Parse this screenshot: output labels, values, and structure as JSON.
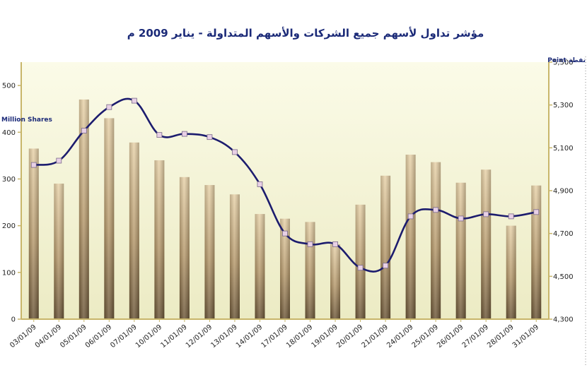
{
  "chart_data": {
    "type": "bar+line",
    "title": "مؤشر تداول لأسهم جميع الشركات والأسهم المتداولة - يناير 2009 م",
    "categories": [
      "03/01/09",
      "04/01/09",
      "05/01/09",
      "06/01/09",
      "07/01/09",
      "10/01/09",
      "11/01/09",
      "12/01/09",
      "13/01/09",
      "14/01/09",
      "17/01/09",
      "18/01/09",
      "19/01/09",
      "20/01/09",
      "21/01/09",
      "24/01/09",
      "25/01/09",
      "26/01/09",
      "27/01/09",
      "28/01/09",
      "31/01/09"
    ],
    "series": [
      {
        "values": [
          365,
          290,
          470,
          430,
          378,
          340,
          304,
          287,
          267,
          225,
          215,
          208,
          160,
          245,
          307,
          352,
          336,
          292,
          320,
          200,
          286
        ],
        "color": "#b5986a"
      },
      {
        "values": [
          5020,
          5040,
          5180,
          5290,
          5320,
          5160,
          5165,
          5150,
          5080,
          4930,
          4700,
          4650,
          4650,
          4540,
          4550,
          4780,
          4810,
          4770,
          4790,
          4780,
          4800
        ],
        "color": "#1c1c6e",
        "marker_fill": "#e8d0e6"
      }
    ],
    "y_left": {
      "label": "Million Shares",
      "lim": [
        0,
        550
      ],
      "ticks": [
        0,
        100,
        200,
        300,
        400,
        500
      ]
    },
    "y_right": {
      "label": "Point نقطة",
      "lim": [
        4300,
        5500
      ],
      "ticks": [
        "4,300",
        "4,500",
        "4,700",
        "4,900",
        "5,100",
        "5,300",
        "5,500"
      ],
      "tick_values": [
        4300,
        4500,
        4700,
        4900,
        5100,
        5300,
        5500
      ]
    },
    "plot_background": [
      "#fbfbe8",
      "#ecebc4"
    ],
    "grid": false,
    "legend": "none"
  }
}
